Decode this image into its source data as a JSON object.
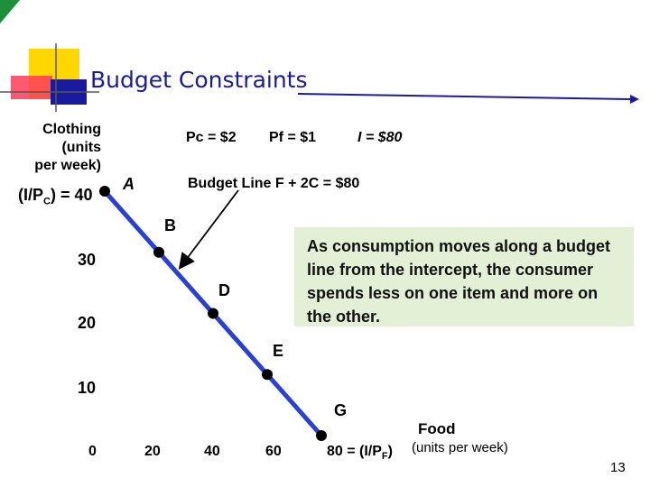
{
  "title": "Budget Constraints",
  "y_axis_label": [
    "Clothing",
    "(units",
    "per week)"
  ],
  "y_intercept_label": {
    "prefix": "(I/P",
    "sub": "C",
    "suffix": ") = 40"
  },
  "params": {
    "pc": "Pc = $2",
    "pf": "Pf = $1",
    "income": "I = $80"
  },
  "budget_line_label": "Budget Line  F + 2C = $80",
  "note": "As consumption moves along a budget line from the intercept, the consumer spends less on one item and more on the other.",
  "x_axis_label": {
    "title": "Food",
    "units": "(units per week)"
  },
  "x_intercept_label": {
    "prefix": "80 = (I/P",
    "sub": "F",
    "suffix": ")"
  },
  "page_number": "13",
  "colors": {
    "title": "#1a1a9e",
    "line": "#2a3fd6",
    "note_bg": "#e4f0d6",
    "axis": "#000000"
  },
  "chart_data": {
    "type": "line",
    "title": "Budget Constraints",
    "xlabel": "Food (units per week)",
    "ylabel": "Clothing (units per week)",
    "xlim": [
      0,
      80
    ],
    "ylim": [
      0,
      40
    ],
    "x_ticks": [
      "0",
      "20",
      "40",
      "60"
    ],
    "y_ticks": [
      "10",
      "20",
      "30"
    ],
    "series": [
      {
        "name": "Budget Line F + 2C = $80",
        "points": [
          {
            "label": "A",
            "food": 0,
            "clothing": 40
          },
          {
            "label": "B",
            "food": 20,
            "clothing": 30
          },
          {
            "label": "D",
            "food": 40,
            "clothing": 20
          },
          {
            "label": "E",
            "food": 60,
            "clothing": 10
          },
          {
            "label": "G",
            "food": 80,
            "clothing": 0
          }
        ]
      }
    ]
  }
}
